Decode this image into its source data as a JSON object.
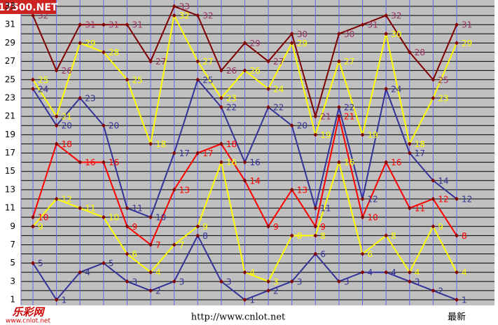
{
  "chart_data": {
    "type": "line",
    "logo": "17500.NET",
    "footer": "http://www.cnlot.net",
    "brand": "乐彩网",
    "brand_url": "www.cnlot.net",
    "categories": [
      null,
      null,
      null,
      null,
      null,
      null,
      null,
      null,
      null,
      null,
      null,
      null,
      null,
      null,
      null,
      null,
      null,
      null,
      "最新"
    ],
    "ylim": [
      1,
      33
    ],
    "yticks": [
      1,
      3,
      5,
      7,
      9,
      11,
      13,
      15,
      17,
      19,
      21,
      23,
      25,
      27,
      29,
      31,
      33
    ],
    "minor_grid": true,
    "marker_color": "#800000",
    "series": [
      {
        "color": "#800000",
        "label_color": "#993366",
        "values": [
          32,
          26,
          31,
          31,
          31,
          27,
          33,
          32,
          26,
          29,
          27,
          30,
          21,
          30,
          31,
          32,
          28,
          25,
          31
        ]
      },
      {
        "color": "#ffff00",
        "label_color": "#ffff00",
        "values": [
          25,
          21,
          29,
          28,
          25,
          18,
          32,
          27,
          23,
          26,
          24,
          29,
          19,
          27,
          19,
          30,
          18,
          23,
          29
        ]
      },
      {
        "color": "#333399",
        "label_color": "#333399",
        "values": [
          24,
          20,
          23,
          20,
          11,
          10,
          17,
          25,
          22,
          16,
          22,
          20,
          11,
          22,
          12,
          24,
          17,
          14,
          12
        ]
      },
      {
        "color": "#ff0000",
        "label_color": "#ff0000",
        "values": [
          10,
          18,
          16,
          16,
          9,
          7,
          13,
          17,
          18,
          14,
          9,
          13,
          9,
          21,
          10,
          16,
          11,
          12,
          8
        ]
      },
      {
        "color": "#ffff00",
        "label_color": "#ffff00",
        "values": [
          9,
          12,
          11,
          10,
          6,
          4,
          7,
          9,
          16,
          4,
          3,
          8,
          8,
          16,
          6,
          8,
          4,
          9,
          4
        ]
      },
      {
        "color": "#333399",
        "label_color": "#333399",
        "values": [
          5,
          1,
          4,
          5,
          3,
          2,
          3,
          8,
          3,
          1,
          2,
          3,
          6,
          3,
          4,
          4,
          3,
          2,
          1
        ]
      }
    ]
  }
}
